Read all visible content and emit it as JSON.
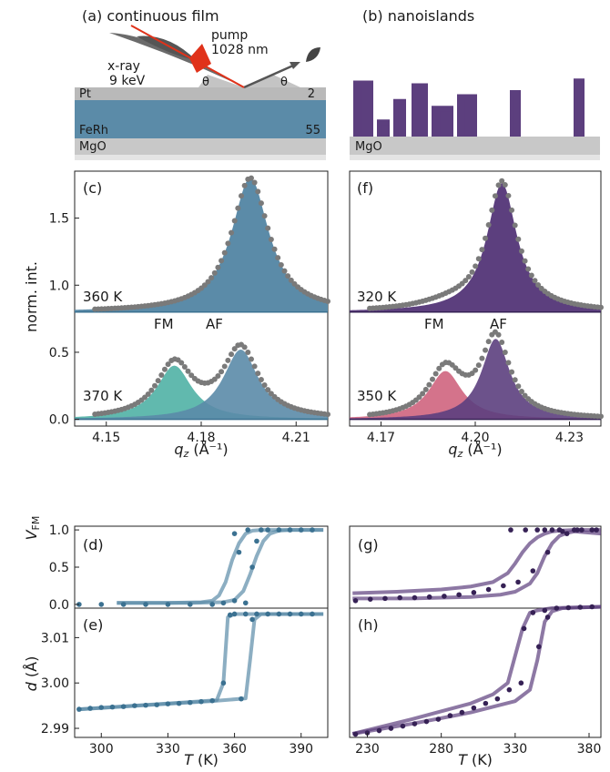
{
  "colors": {
    "film": "#5b8ba8",
    "film_fm": "#3aa89a",
    "film_dark": "#3b7191",
    "island": "#5c3f7e",
    "island_fm": "#c9506e",
    "island_dark": "#362155",
    "substrate": "#c8c8c8",
    "pt": "#b0b0b0",
    "marker": "#7a7a7a",
    "pump": "#e0321a",
    "xray": "#555555"
  },
  "schematic": {
    "a_title": "(a) continuous film",
    "b_title": "(b) nanoislands",
    "pump_label": "pump",
    "pump_wavelength": "1028 nm",
    "xray_label": "x-ray",
    "xray_energy": "9 keV",
    "theta": "θ",
    "pt_label": "Pt",
    "pt_thickness": "2",
    "ferh_label": "FeRh",
    "ferh_thickness": "55",
    "mgo_label": "MgO",
    "island_heights": [
      0.82,
      0.25,
      0.55,
      0.78,
      0.45,
      0.62,
      0.68,
      0.85
    ]
  },
  "chart_data": [
    {
      "id": "c",
      "type": "area",
      "panel_label": "(c)",
      "xlabel_italic": "q",
      "xlabel_sub": "z",
      "xlabel_unit": " (Å⁻¹)",
      "ylabel": "norm. int.",
      "xlim": [
        4.14,
        4.22
      ],
      "ylim": [
        -0.05,
        1.85
      ],
      "xticks": [
        4.15,
        4.18,
        4.21
      ],
      "xtick_labels": [
        "4.15",
        "4.18",
        "4.21"
      ],
      "yticks": [
        0.0,
        0.5,
        1.0,
        1.5
      ],
      "ytick_labels": [
        "0.0",
        "0.5",
        "1.0",
        "1.5"
      ],
      "top_label": "360 K",
      "bottom_label": "370 K",
      "fm_label": "FM",
      "af_label": "AF",
      "top_baseline": 0.8,
      "top_af": {
        "center": 4.1955,
        "height": 1.0,
        "width": 0.0072
      },
      "bottom_fm": {
        "center": 4.1715,
        "height": 0.4,
        "width": 0.0068
      },
      "bottom_af": {
        "center": 4.1925,
        "height": 0.52,
        "width": 0.0068
      }
    },
    {
      "id": "f",
      "type": "area",
      "panel_label": "(f)",
      "xlabel_italic": "q",
      "xlabel_sub": "z",
      "xlabel_unit": " (Å⁻¹)",
      "xlim": [
        4.16,
        4.24
      ],
      "ylim": [
        -0.05,
        1.85
      ],
      "xticks": [
        4.17,
        4.2,
        4.23
      ],
      "xtick_labels": [
        "4.17",
        "4.20",
        "4.23"
      ],
      "top_label": "320 K",
      "bottom_label": "350 K",
      "fm_label": "FM",
      "af_label": "AF",
      "top_baseline": 0.8,
      "top_af": {
        "center": 4.2085,
        "height": 0.96,
        "width": 0.0058
      },
      "top_fm": {
        "center": 4.192,
        "height": 0.05,
        "width": 0.012
      },
      "bottom_fm": {
        "center": 4.1905,
        "height": 0.36,
        "width": 0.0065
      },
      "bottom_af": {
        "center": 4.2065,
        "height": 0.6,
        "width": 0.0055
      }
    },
    {
      "id": "d",
      "type": "line",
      "panel_label": "(d)",
      "ylabel": "V",
      "ylabel_sub": "FM",
      "xlim": [
        288,
        402
      ],
      "ylim": [
        -0.05,
        1.05
      ],
      "yticks": [
        0.0,
        0.5,
        1.0
      ],
      "ytick_labels": [
        "0.0",
        "0.5",
        "1.0"
      ],
      "curves": [
        {
          "name": "",
          "x": [
            307,
            330,
            345,
            350,
            353,
            356,
            359,
            362,
            365,
            368,
            372,
            380,
            390,
            400
          ],
          "y": [
            0.02,
            0.02,
            0.03,
            0.05,
            0.12,
            0.3,
            0.6,
            0.82,
            0.95,
            0.99,
            1.0,
            1.0,
            1.0,
            1.0
          ]
        },
        {
          "name": "",
          "x": [
            307,
            340,
            355,
            360,
            364,
            367,
            370,
            373,
            376,
            380,
            385,
            400
          ],
          "y": [
            0.02,
            0.02,
            0.03,
            0.06,
            0.18,
            0.4,
            0.65,
            0.85,
            0.95,
            0.99,
            1.0,
            1.0
          ]
        }
      ],
      "points_x": [
        290,
        300,
        310,
        320,
        330,
        340,
        350,
        355,
        360,
        362,
        365,
        368,
        370,
        372,
        375,
        380,
        385,
        390,
        395,
        360,
        366
      ],
      "points_y": [
        0.0,
        0.0,
        0.0,
        0.0,
        0.0,
        0.0,
        0.0,
        0.02,
        0.05,
        0.7,
        0.02,
        0.5,
        0.85,
        1.0,
        1.0,
        1.0,
        1.0,
        1.0,
        1.0,
        0.95,
        1.0
      ]
    },
    {
      "id": "e",
      "type": "line",
      "panel_label": "(e)",
      "ylabel": "d",
      "ylabel_unit": " (Å)",
      "xlabel_italic": "T",
      "xlabel_unit": " (K)",
      "xlim": [
        288,
        402
      ],
      "ylim": [
        2.988,
        3.0165
      ],
      "xticks": [
        300,
        330,
        360,
        390
      ],
      "xtick_labels": [
        "300",
        "330",
        "360",
        "390"
      ],
      "yticks": [
        2.99,
        3.0,
        3.01
      ],
      "ytick_labels": [
        "2.99",
        "3.00",
        "3.01"
      ],
      "curves": [
        {
          "name": "",
          "x": [
            290,
            340,
            352,
            355,
            357,
            360,
            400
          ],
          "y": [
            2.9942,
            2.9958,
            2.9962,
            3.0,
            3.0145,
            3.0152,
            3.0152
          ]
        },
        {
          "name": "",
          "x": [
            290,
            350,
            365,
            367,
            369,
            372,
            400
          ],
          "y": [
            2.9942,
            2.996,
            2.9966,
            3.005,
            3.014,
            3.0152,
            3.0152
          ]
        }
      ],
      "points_x": [
        290,
        295,
        300,
        305,
        310,
        315,
        320,
        325,
        330,
        335,
        340,
        345,
        350,
        355,
        358,
        360,
        363,
        365,
        368,
        370,
        375,
        380,
        385,
        390,
        395
      ],
      "points_y": [
        2.9942,
        2.9944,
        2.9946,
        2.9947,
        2.9948,
        2.995,
        2.9951,
        2.9952,
        2.9954,
        2.9955,
        2.9957,
        2.9959,
        2.9961,
        3.0,
        3.015,
        3.0152,
        2.9965,
        3.0152,
        3.014,
        3.0152,
        3.0152,
        3.0152,
        3.0152,
        3.0152,
        3.0152
      ]
    },
    {
      "id": "g",
      "type": "line",
      "panel_label": "(g)",
      "xlim": [
        218,
        388
      ],
      "ylim": [
        -0.05,
        1.05
      ],
      "curves": [
        {
          "name": "",
          "x": [
            220,
            250,
            280,
            300,
            315,
            325,
            330,
            335,
            340,
            345,
            350,
            355,
            360,
            370,
            388
          ],
          "y": [
            0.15,
            0.17,
            0.2,
            0.24,
            0.3,
            0.42,
            0.55,
            0.7,
            0.82,
            0.9,
            0.95,
            0.98,
            0.99,
            1.0,
            1.0
          ]
        },
        {
          "name": "",
          "x": [
            220,
            260,
            300,
            320,
            330,
            340,
            345,
            350,
            355,
            360,
            365,
            370,
            388
          ],
          "y": [
            0.08,
            0.08,
            0.1,
            0.13,
            0.17,
            0.28,
            0.42,
            0.65,
            0.82,
            0.92,
            0.96,
            0.98,
            0.95
          ]
        }
      ],
      "points_x": [
        222,
        232,
        242,
        252,
        262,
        272,
        282,
        292,
        302,
        312,
        322,
        332,
        342,
        352,
        362,
        372,
        382,
        327,
        337,
        345,
        350,
        355,
        360,
        365,
        370,
        375,
        385
      ],
      "points_y": [
        0.05,
        0.07,
        0.08,
        0.09,
        0.09,
        0.1,
        0.11,
        0.13,
        0.16,
        0.2,
        0.25,
        0.3,
        0.45,
        0.7,
        0.98,
        1.0,
        1.0,
        1.0,
        1.0,
        1.0,
        1.0,
        1.0,
        1.0,
        0.95,
        1.0,
        1.0,
        1.0
      ]
    },
    {
      "id": "h",
      "type": "line",
      "panel_label": "(h)",
      "xlabel_italic": "T",
      "xlabel_unit": " (K)",
      "xlim": [
        218,
        388
      ],
      "ylim": [
        2.988,
        3.0165
      ],
      "xticks": [
        230,
        280,
        330,
        380
      ],
      "xtick_labels": [
        "230",
        "280",
        "330",
        "380"
      ],
      "curves": [
        {
          "name": "",
          "x": [
            220,
            260,
            300,
            315,
            325,
            335,
            340,
            345,
            355,
            388
          ],
          "y": [
            2.9888,
            2.992,
            2.9955,
            2.9975,
            3.0,
            3.012,
            3.0155,
            3.016,
            3.0165,
            3.0168
          ]
        },
        {
          "name": "",
          "x": [
            220,
            260,
            300,
            330,
            340,
            345,
            350,
            355,
            362,
            388
          ],
          "y": [
            2.9888,
            2.991,
            2.9935,
            2.996,
            2.9985,
            3.005,
            3.0135,
            3.0158,
            3.0165,
            3.0168
          ]
        }
      ],
      "points_x": [
        222,
        230,
        238,
        246,
        254,
        262,
        270,
        278,
        286,
        294,
        302,
        310,
        318,
        326,
        334,
        342,
        350,
        358,
        366,
        374,
        382,
        336,
        346,
        352
      ],
      "points_y": [
        2.9887,
        2.989,
        2.9895,
        2.99,
        2.9905,
        2.991,
        2.9915,
        2.992,
        2.9928,
        2.9935,
        2.9945,
        2.9955,
        2.9965,
        2.9985,
        3.0,
        3.0155,
        3.016,
        3.0165,
        3.0166,
        3.0167,
        3.0168,
        3.012,
        3.008,
        3.0145
      ]
    }
  ]
}
